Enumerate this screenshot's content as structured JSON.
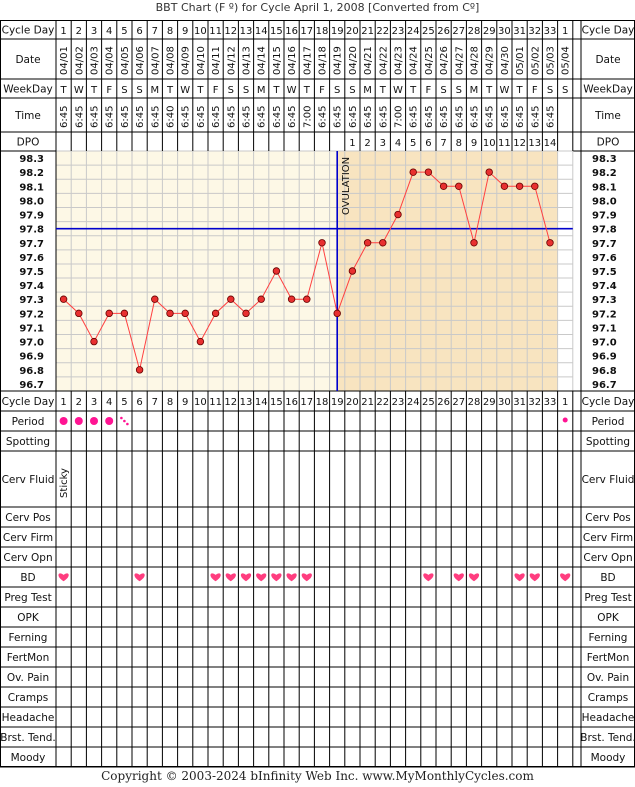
{
  "title": "BBT Chart (F º) for Cycle April 1, 2008  [Converted from Cº]",
  "footer": "Copyright © 2003-2024 bInfinity Web Inc.     www.MyMonthlyCycles.com",
  "row_labels": {
    "cycle_day": "Cycle Day",
    "date": "Date",
    "weekday": "WeekDay",
    "time": "Time",
    "dpo": "DPO",
    "period": "Period",
    "spotting": "Spotting",
    "cerv_fluid": "Cerv Fluid",
    "cerv_pos": "Cerv Pos",
    "cerv_firm": "Cerv Firm",
    "cerv_opn": "Cerv Opn",
    "bd": "BD",
    "preg_test": "Preg Test",
    "opk": "OPK",
    "ferning": "Ferning",
    "fertmon": "FertMon",
    "ov_pain": "Ov. Pain",
    "cramps": "Cramps",
    "headache": "Headache",
    "brst_tend": "Brst. Tend.",
    "moody": "Moody"
  },
  "ovulation_label": "OVULATION",
  "colors": {
    "grid_pre": "#fdf8e6",
    "grid_post": "#f8e4c0",
    "grid_line": "#c9c9c9",
    "temp_line": "#ff4040",
    "point_fill": "#e83030",
    "coverline": "#0000cc",
    "period": "#ff1493",
    "heart": "#ff3d7f"
  },
  "chart_data": {
    "type": "line",
    "cycle_days": [
      "1",
      "2",
      "3",
      "4",
      "5",
      "6",
      "7",
      "8",
      "9",
      "10",
      "11",
      "12",
      "13",
      "14",
      "15",
      "16",
      "17",
      "18",
      "19",
      "20",
      "21",
      "22",
      "23",
      "24",
      "25",
      "26",
      "27",
      "28",
      "29",
      "30",
      "31",
      "32",
      "33",
      "1"
    ],
    "dates": [
      "04/01",
      "04/02",
      "04/03",
      "04/04",
      "04/05",
      "04/06",
      "04/07",
      "04/08",
      "04/09",
      "04/10",
      "04/11",
      "04/12",
      "04/13",
      "04/14",
      "04/15",
      "04/16",
      "04/17",
      "04/18",
      "04/19",
      "04/20",
      "04/21",
      "04/22",
      "04/23",
      "04/24",
      "04/25",
      "04/26",
      "04/27",
      "04/28",
      "04/29",
      "04/30",
      "05/01",
      "05/02",
      "05/03",
      "05/04"
    ],
    "weekdays": [
      "T",
      "W",
      "T",
      "F",
      "S",
      "S",
      "M",
      "T",
      "W",
      "T",
      "F",
      "S",
      "S",
      "M",
      "T",
      "W",
      "T",
      "F",
      "S",
      "S",
      "M",
      "T",
      "W",
      "T",
      "F",
      "S",
      "S",
      "M",
      "T",
      "W",
      "T",
      "F",
      "S",
      "S"
    ],
    "times": [
      "6:45",
      "6:45",
      "6:45",
      "6:45",
      "6:45",
      "6:45",
      "6:45",
      "6:40",
      "6:45",
      "6:45",
      "6:45",
      "6:45",
      "6:45",
      "6:45",
      "6:45",
      "6:45",
      "7:00",
      "6:45",
      "6:45",
      "6:45",
      "6:45",
      "6:45",
      "7:00",
      "6:45",
      "6:45",
      "6:45",
      "6:45",
      "6:45",
      "6:45",
      "6:45",
      "6:45",
      "6:45",
      "6:45",
      ""
    ],
    "dpo": [
      "",
      "",
      "",
      "",
      "",
      "",
      "",
      "",
      "",
      "",
      "",
      "",
      "",
      "",
      "",
      "",
      "",
      "",
      "",
      "1",
      "2",
      "3",
      "4",
      "5",
      "6",
      "7",
      "8",
      "9",
      "10",
      "11",
      "12",
      "13",
      "14",
      ""
    ],
    "y_ticks": [
      "98.3",
      "98.2",
      "98.1",
      "98.0",
      "97.9",
      "97.8",
      "97.7",
      "97.6",
      "97.5",
      "97.4",
      "97.3",
      "97.2",
      "97.1",
      "97.0",
      "96.9",
      "96.8",
      "96.7"
    ],
    "ylim": [
      96.7,
      98.3
    ],
    "temps": [
      97.3,
      97.2,
      97.0,
      97.2,
      97.2,
      96.8,
      97.3,
      97.2,
      97.2,
      97.0,
      97.2,
      97.3,
      97.2,
      97.3,
      97.5,
      97.3,
      97.3,
      97.7,
      97.2,
      97.5,
      97.7,
      97.7,
      97.9,
      98.2,
      98.2,
      98.1,
      98.1,
      97.7,
      98.2,
      98.1,
      98.1,
      98.1,
      97.7,
      null
    ],
    "coverline": 97.8,
    "ovulation_day_index": 18,
    "period": [
      "dot",
      "dot",
      "dot",
      "dot",
      "spot",
      "",
      "",
      "",
      "",
      "",
      "",
      "",
      "",
      "",
      "",
      "",
      "",
      "",
      "",
      "",
      "",
      "",
      "",
      "",
      "",
      "",
      "",
      "",
      "",
      "",
      "",
      "",
      "",
      "dot-small"
    ],
    "cerv_fluid": {
      "index": 0,
      "text": "Sticky"
    },
    "bd_days": [
      0,
      5,
      10,
      11,
      12,
      13,
      14,
      15,
      16,
      24,
      26,
      27,
      30,
      31,
      33
    ]
  }
}
